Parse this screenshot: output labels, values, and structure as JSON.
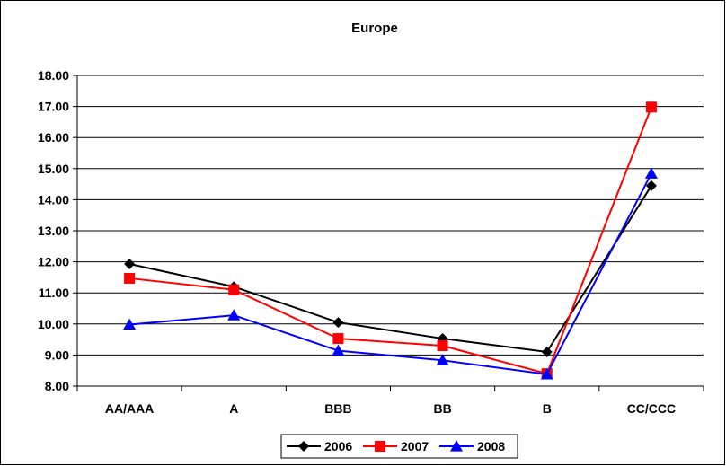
{
  "chart_data": {
    "type": "line",
    "title": "Europe",
    "xlabel": "",
    "ylabel": "",
    "categories": [
      "AA/AAA",
      "A",
      "BBB",
      "BB",
      "B",
      "CC/CCC"
    ],
    "ylim": [
      8.0,
      18.0
    ],
    "yticks": [
      "8.00",
      "9.00",
      "10.00",
      "11.00",
      "12.00",
      "13.00",
      "14.00",
      "15.00",
      "16.00",
      "17.00",
      "18.00"
    ],
    "grid": true,
    "legend": "bottom",
    "series": [
      {
        "name": "2006",
        "color": "#000000",
        "marker": "diamond",
        "values": [
          11.93,
          11.2,
          10.05,
          9.53,
          9.1,
          14.45
        ]
      },
      {
        "name": "2007",
        "color": "#ff0000",
        "marker": "square",
        "values": [
          11.47,
          11.1,
          9.53,
          9.3,
          8.4,
          16.98
        ]
      },
      {
        "name": "2008",
        "color": "#0000ff",
        "marker": "triangle",
        "values": [
          9.98,
          10.28,
          9.14,
          8.83,
          8.38,
          14.84
        ]
      }
    ]
  }
}
